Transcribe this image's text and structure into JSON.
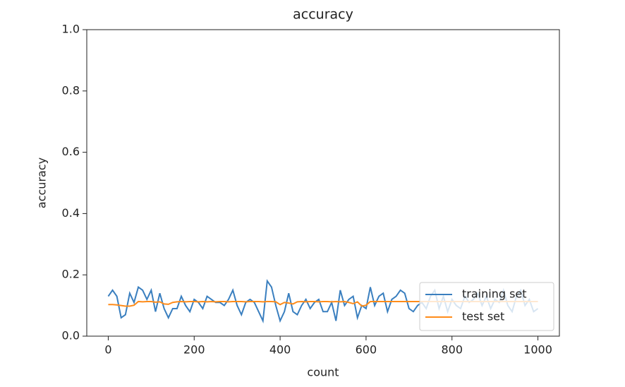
{
  "chart_data": {
    "type": "line",
    "title": "accuracy",
    "x_label": "count",
    "y_label": "accuracy",
    "x": [
      0,
      10,
      20,
      30,
      40,
      50,
      60,
      70,
      80,
      90,
      100,
      110,
      120,
      130,
      140,
      150,
      160,
      170,
      180,
      190,
      200,
      210,
      220,
      230,
      240,
      250,
      260,
      270,
      280,
      290,
      300,
      310,
      320,
      330,
      340,
      350,
      360,
      370,
      380,
      390,
      400,
      410,
      420,
      430,
      440,
      450,
      460,
      470,
      480,
      490,
      500,
      510,
      520,
      530,
      540,
      550,
      560,
      570,
      580,
      590,
      600,
      610,
      620,
      630,
      640,
      650,
      660,
      670,
      680,
      690,
      700,
      710,
      720,
      730,
      740,
      750,
      760,
      770,
      780,
      790,
      800,
      810,
      820,
      830,
      840,
      850,
      860,
      870,
      880,
      890,
      900,
      910,
      920,
      930,
      940,
      950,
      960,
      970,
      980,
      990,
      1000
    ],
    "series": [
      {
        "name": "training set",
        "color": "#3a7fbf",
        "values": [
          0.13,
          0.15,
          0.13,
          0.06,
          0.07,
          0.14,
          0.11,
          0.16,
          0.15,
          0.12,
          0.15,
          0.08,
          0.14,
          0.09,
          0.06,
          0.09,
          0.09,
          0.13,
          0.1,
          0.08,
          0.12,
          0.11,
          0.09,
          0.13,
          0.12,
          0.11,
          0.11,
          0.1,
          0.12,
          0.15,
          0.1,
          0.07,
          0.11,
          0.12,
          0.11,
          0.08,
          0.05,
          0.18,
          0.16,
          0.1,
          0.05,
          0.08,
          0.14,
          0.08,
          0.07,
          0.1,
          0.12,
          0.09,
          0.11,
          0.12,
          0.08,
          0.08,
          0.11,
          0.05,
          0.15,
          0.1,
          0.12,
          0.13,
          0.06,
          0.1,
          0.09,
          0.16,
          0.1,
          0.13,
          0.14,
          0.08,
          0.12,
          0.13,
          0.15,
          0.14,
          0.09,
          0.08,
          0.1,
          0.11,
          0.09,
          0.13,
          0.15,
          0.09,
          0.13,
          0.08,
          0.12,
          0.1,
          0.09,
          0.13,
          0.11,
          0.12,
          0.14,
          0.1,
          0.13,
          0.09,
          0.12,
          0.11,
          0.15,
          0.1,
          0.08,
          0.13,
          0.15,
          0.1,
          0.12,
          0.08,
          0.09
        ]
      },
      {
        "name": "test set",
        "color": "#ff8c1a",
        "values": [
          0.103,
          0.103,
          0.102,
          0.1,
          0.098,
          0.098,
          0.101,
          0.113,
          0.112,
          0.113,
          0.113,
          0.111,
          0.112,
          0.105,
          0.104,
          0.11,
          0.112,
          0.113,
          0.112,
          0.113,
          0.113,
          0.112,
          0.113,
          0.112,
          0.113,
          0.112,
          0.113,
          0.113,
          0.112,
          0.113,
          0.113,
          0.113,
          0.112,
          0.113,
          0.113,
          0.113,
          0.112,
          0.113,
          0.113,
          0.112,
          0.103,
          0.11,
          0.108,
          0.105,
          0.112,
          0.113,
          0.112,
          0.113,
          0.113,
          0.112,
          0.113,
          0.113,
          0.112,
          0.113,
          0.112,
          0.113,
          0.11,
          0.106,
          0.112,
          0.098,
          0.101,
          0.113,
          0.113,
          0.113,
          0.113,
          0.113,
          0.113,
          0.113,
          0.113,
          0.113,
          0.113,
          0.113,
          0.113,
          0.113,
          0.113,
          0.113,
          0.113,
          0.113,
          0.113,
          0.113,
          0.113,
          0.113,
          0.113,
          0.113,
          0.113,
          0.113,
          0.113,
          0.113,
          0.113,
          0.113,
          0.113,
          0.113,
          0.113,
          0.113,
          0.113,
          0.113,
          0.113,
          0.113,
          0.113,
          0.113,
          0.113
        ]
      }
    ],
    "xlim": [
      -50,
      1050
    ],
    "ylim": [
      0,
      1
    ],
    "xticks": [
      0,
      200,
      400,
      600,
      800,
      1000
    ],
    "yticks": [
      {
        "value": 0,
        "label": "0.0"
      },
      {
        "value": 0.2,
        "label": "0.2"
      },
      {
        "value": 0.4,
        "label": "0.4"
      },
      {
        "value": 0.6,
        "label": "0.6"
      },
      {
        "value": 0.8,
        "label": "0.8"
      },
      {
        "value": 1,
        "label": "1.0"
      }
    ],
    "legend": "lower right"
  }
}
